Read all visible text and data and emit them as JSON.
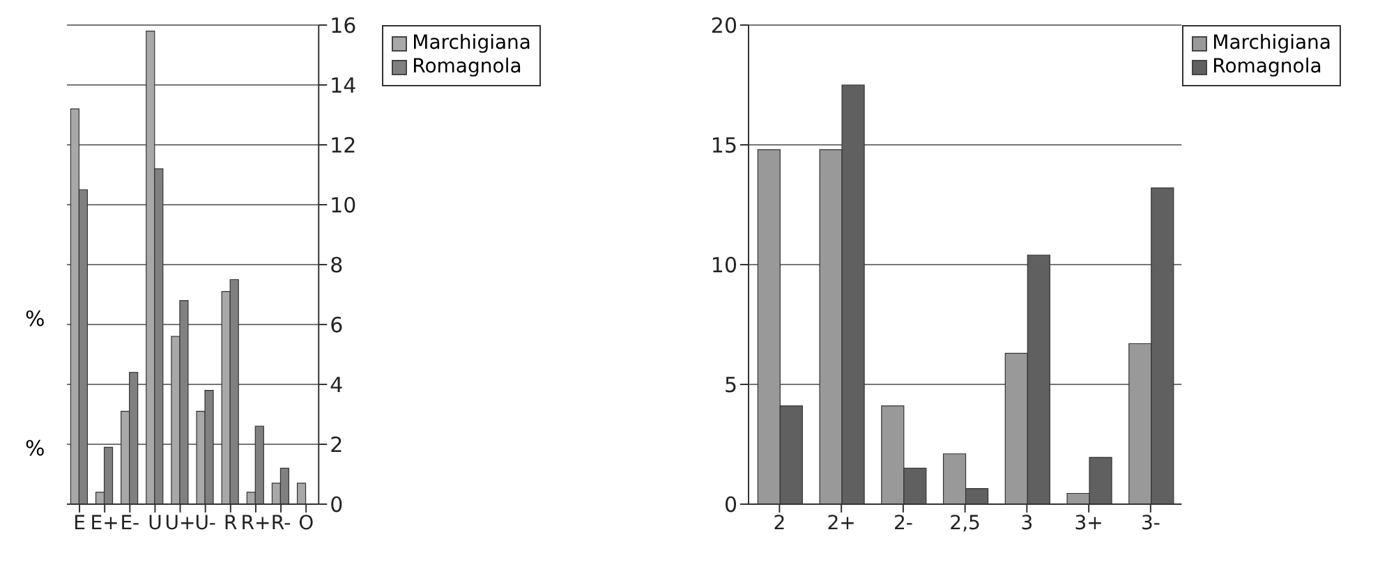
{
  "chart_data": [
    {
      "type": "bar",
      "ylabel": "%",
      "annotations": [
        "%"
      ],
      "categories": [
        "E",
        "E+",
        "E-",
        "U",
        "U+",
        "U-",
        "R",
        "R+",
        "R-",
        "O"
      ],
      "series": [
        {
          "name": "Marchigiana",
          "color": "#a8a8a8",
          "values": [
            13.2,
            0.4,
            3.1,
            15.8,
            5.6,
            3.1,
            7.1,
            0.4,
            0.7,
            0.7
          ]
        },
        {
          "name": "Romagnola",
          "color": "#808080",
          "values": [
            10.5,
            1.9,
            4.4,
            11.2,
            6.8,
            3.8,
            7.5,
            2.6,
            1.2,
            0
          ]
        }
      ],
      "ylim": [
        0,
        16
      ],
      "yticks": [
        0,
        2,
        4,
        6,
        8,
        10,
        12,
        14,
        16
      ],
      "grid": "y",
      "legend": "top right"
    },
    {
      "type": "bar",
      "categories": [
        "2",
        "2+",
        "2-",
        "2,5",
        "3",
        "3+",
        "3-"
      ],
      "series": [
        {
          "name": "Marchigiana",
          "color": "#999999",
          "values": [
            14.8,
            14.8,
            4.1,
            2.1,
            6.3,
            0.45,
            6.7
          ]
        },
        {
          "name": "Romagnola",
          "color": "#606060",
          "values": [
            4.1,
            17.5,
            1.5,
            0.65,
            10.4,
            1.95,
            13.2
          ]
        }
      ],
      "ylim": [
        0,
        20
      ],
      "yticks": [
        0,
        5,
        10,
        15,
        20
      ],
      "grid": "y",
      "legend": "top right"
    }
  ]
}
